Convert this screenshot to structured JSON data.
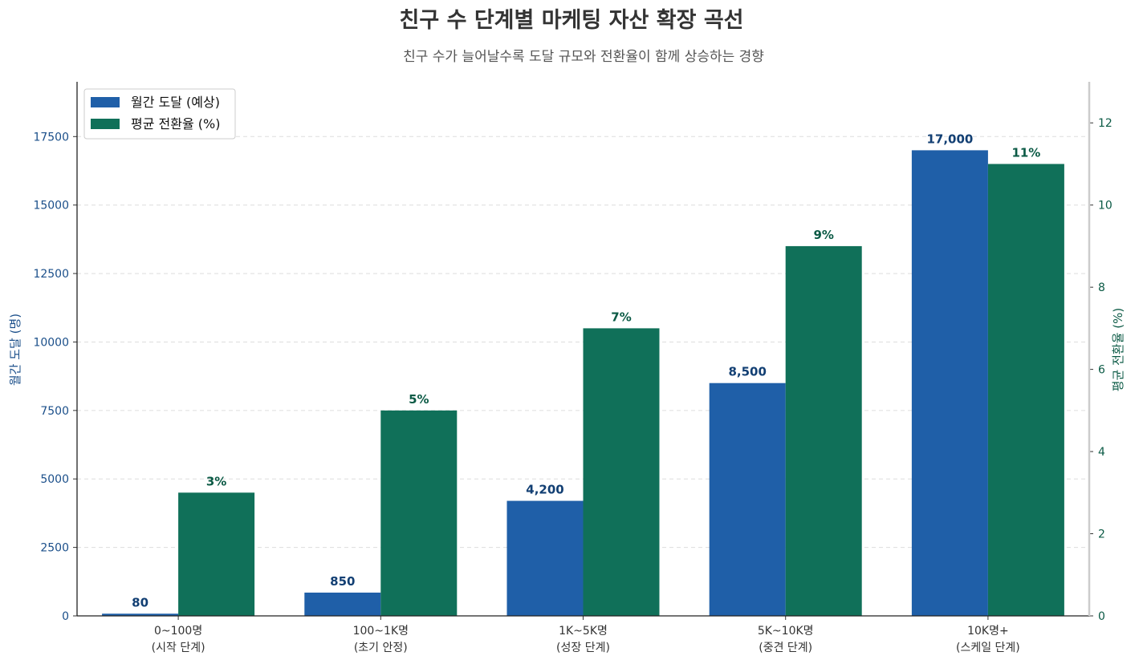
{
  "chart_data": {
    "type": "bar",
    "title": "친구 수 단계별 마케팅 자산 확장 곡선",
    "subtitle": "친구 수가 늘어날수록 도달 규모와 전환율이 함께 상승하는 경향",
    "categories": [
      [
        "0~100명",
        "(시작 단계)"
      ],
      [
        "100~1K명",
        "(초기 안정)"
      ],
      [
        "1K~5K명",
        "(성장 단계)"
      ],
      [
        "5K~10K명",
        "(중견 단계)"
      ],
      [
        "10K명+",
        "(스케일 단계)"
      ]
    ],
    "series": [
      {
        "name": "월간 도달 (예상)",
        "axis": "left",
        "color": "#1f5fa8",
        "values": [
          80,
          850,
          4200,
          8500,
          17000
        ],
        "labels": [
          "80",
          "850",
          "4,200",
          "8,500",
          "17,000"
        ]
      },
      {
        "name": "평균 전환율 (%)",
        "axis": "right",
        "color": "#107059",
        "values": [
          3,
          5,
          7,
          9,
          11
        ],
        "labels": [
          "3%",
          "5%",
          "7%",
          "9%",
          "11%"
        ]
      }
    ],
    "ylabel_left": "월간 도달 (명)",
    "ylabel_right": "평균 전환율 (%)",
    "ylim_left": [
      0,
      19500
    ],
    "ylim_right": [
      0,
      13
    ],
    "yticks_left": [
      "0",
      "2500",
      "5000",
      "7500",
      "10000",
      "12500",
      "15000",
      "17500"
    ],
    "yticks_right": [
      "0",
      "2",
      "4",
      "6",
      "8",
      "10",
      "12"
    ],
    "grid": "horizontal dashed",
    "legend_position": "top-left"
  }
}
